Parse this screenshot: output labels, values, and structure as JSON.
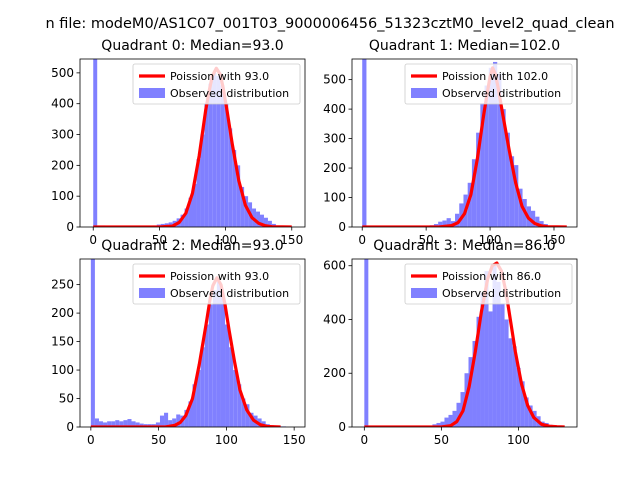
{
  "figure": {
    "title": "n file: modeM0/AS1C07_001T03_9000006456_51323cztM0_level2_quad_clean"
  },
  "colors": {
    "observed": "#8080ff",
    "poisson": "#ff0000"
  },
  "chart_data": [
    {
      "type": "bar",
      "title": "Quadrant 0: Median=93.0",
      "xlim": [
        -10,
        160
      ],
      "ylim": [
        0,
        545
      ],
      "xticks": [
        0,
        50,
        100,
        150
      ],
      "yticks": [
        0,
        100,
        200,
        300,
        400,
        500
      ],
      "legend": {
        "placement": "top-right",
        "poisson_label": "Poission with 93.0",
        "observed_label": "Observed distribution"
      },
      "bin_width": 3,
      "bins": [
        {
          "x": 0,
          "y": 545
        },
        {
          "x": 3,
          "y": 5
        },
        {
          "x": 6,
          "y": 5
        },
        {
          "x": 9,
          "y": 4
        },
        {
          "x": 12,
          "y": 4
        },
        {
          "x": 15,
          "y": 3
        },
        {
          "x": 18,
          "y": 3
        },
        {
          "x": 21,
          "y": 3
        },
        {
          "x": 24,
          "y": 3
        },
        {
          "x": 27,
          "y": 3
        },
        {
          "x": 30,
          "y": 3
        },
        {
          "x": 33,
          "y": 3
        },
        {
          "x": 36,
          "y": 3
        },
        {
          "x": 39,
          "y": 3
        },
        {
          "x": 42,
          "y": 4
        },
        {
          "x": 45,
          "y": 5
        },
        {
          "x": 48,
          "y": 8
        },
        {
          "x": 51,
          "y": 10
        },
        {
          "x": 54,
          "y": 12
        },
        {
          "x": 57,
          "y": 15
        },
        {
          "x": 60,
          "y": 20
        },
        {
          "x": 63,
          "y": 28
        },
        {
          "x": 66,
          "y": 40
        },
        {
          "x": 69,
          "y": 60
        },
        {
          "x": 72,
          "y": 95
        },
        {
          "x": 75,
          "y": 140
        },
        {
          "x": 78,
          "y": 220
        },
        {
          "x": 81,
          "y": 300
        },
        {
          "x": 84,
          "y": 400
        },
        {
          "x": 87,
          "y": 465
        },
        {
          "x": 90,
          "y": 500
        },
        {
          "x": 93,
          "y": 490
        },
        {
          "x": 96,
          "y": 460
        },
        {
          "x": 99,
          "y": 400
        },
        {
          "x": 102,
          "y": 320
        },
        {
          "x": 105,
          "y": 250
        },
        {
          "x": 108,
          "y": 200
        },
        {
          "x": 111,
          "y": 130
        },
        {
          "x": 114,
          "y": 100
        },
        {
          "x": 117,
          "y": 80
        },
        {
          "x": 120,
          "y": 60
        },
        {
          "x": 123,
          "y": 50
        },
        {
          "x": 126,
          "y": 40
        },
        {
          "x": 129,
          "y": 30
        },
        {
          "x": 132,
          "y": 20
        },
        {
          "x": 135,
          "y": 10
        },
        {
          "x": 138,
          "y": 5
        },
        {
          "x": 141,
          "y": 3
        },
        {
          "x": 144,
          "y": 2
        },
        {
          "x": 147,
          "y": 1
        }
      ],
      "poisson": {
        "x": [
          0,
          50,
          60,
          65,
          70,
          75,
          80,
          85,
          88,
          90,
          93,
          96,
          98,
          101,
          105,
          110,
          115,
          120,
          125,
          130,
          135,
          150
        ],
        "y": [
          0,
          0,
          3,
          15,
          45,
          110,
          230,
          380,
          450,
          490,
          515,
          495,
          455,
          380,
          270,
          150,
          70,
          30,
          12,
          4,
          1,
          0
        ]
      }
    },
    {
      "type": "bar",
      "title": "Quadrant 1: Median=102.0",
      "xlim": [
        -8,
        168
      ],
      "ylim": [
        0,
        570
      ],
      "xticks": [
        0,
        50,
        100,
        150
      ],
      "yticks": [
        0,
        100,
        200,
        300,
        400,
        500
      ],
      "legend": {
        "placement": "top-right",
        "poisson_label": "Poission with 102.0",
        "observed_label": "Observed distribution"
      },
      "bin_width": 3.3,
      "bins": [
        {
          "x": 0,
          "y": 570
        },
        {
          "x": 3.3,
          "y": 5
        },
        {
          "x": 6.6,
          "y": 4
        },
        {
          "x": 9.9,
          "y": 3
        },
        {
          "x": 13.2,
          "y": 3
        },
        {
          "x": 16.5,
          "y": 3
        },
        {
          "x": 19.8,
          "y": 3
        },
        {
          "x": 23.1,
          "y": 4
        },
        {
          "x": 26.4,
          "y": 4
        },
        {
          "x": 29.7,
          "y": 3
        },
        {
          "x": 33,
          "y": 3
        },
        {
          "x": 36.3,
          "y": 3
        },
        {
          "x": 39.6,
          "y": 3
        },
        {
          "x": 42.9,
          "y": 3
        },
        {
          "x": 46.2,
          "y": 3
        },
        {
          "x": 49.5,
          "y": 4
        },
        {
          "x": 52.8,
          "y": 6
        },
        {
          "x": 56.1,
          "y": 10
        },
        {
          "x": 59.4,
          "y": 18
        },
        {
          "x": 62.7,
          "y": 22
        },
        {
          "x": 66,
          "y": 30
        },
        {
          "x": 69.3,
          "y": 20
        },
        {
          "x": 72.6,
          "y": 45
        },
        {
          "x": 75.9,
          "y": 80
        },
        {
          "x": 79.2,
          "y": 110
        },
        {
          "x": 82.5,
          "y": 150
        },
        {
          "x": 85.8,
          "y": 230
        },
        {
          "x": 89.1,
          "y": 320
        },
        {
          "x": 92.4,
          "y": 420
        },
        {
          "x": 95.7,
          "y": 480
        },
        {
          "x": 99,
          "y": 540
        },
        {
          "x": 102.3,
          "y": 560
        },
        {
          "x": 105.6,
          "y": 520
        },
        {
          "x": 108.9,
          "y": 400
        },
        {
          "x": 112.2,
          "y": 320
        },
        {
          "x": 115.5,
          "y": 240
        },
        {
          "x": 118.8,
          "y": 210
        },
        {
          "x": 122.1,
          "y": 130
        },
        {
          "x": 125.4,
          "y": 95
        },
        {
          "x": 128.7,
          "y": 70
        },
        {
          "x": 132,
          "y": 55
        },
        {
          "x": 135.3,
          "y": 35
        },
        {
          "x": 138.6,
          "y": 20
        },
        {
          "x": 141.9,
          "y": 10
        },
        {
          "x": 145.2,
          "y": 5
        },
        {
          "x": 148.5,
          "y": 4
        },
        {
          "x": 151.8,
          "y": 3
        },
        {
          "x": 155.1,
          "y": 2
        }
      ],
      "poisson": {
        "x": [
          0,
          60,
          70,
          75,
          80,
          85,
          90,
          95,
          98,
          100,
          102,
          104,
          106,
          110,
          115,
          120,
          125,
          130,
          135,
          140,
          145,
          160
        ],
        "y": [
          0,
          0,
          5,
          15,
          45,
          110,
          230,
          380,
          460,
          510,
          540,
          520,
          480,
          380,
          260,
          150,
          70,
          30,
          12,
          4,
          1,
          0
        ]
      }
    },
    {
      "type": "bar",
      "title": "Quadrant 2: Median=93.0",
      "xlim": [
        -8,
        158
      ],
      "ylim": [
        0,
        295
      ],
      "xticks": [
        0,
        50,
        100,
        150
      ],
      "yticks": [
        0,
        50,
        100,
        150,
        200,
        250
      ],
      "legend": {
        "placement": "top-right",
        "poisson_label": "Poission with 93.0",
        "observed_label": "Observed distribution"
      },
      "bin_width": 3,
      "bins": [
        {
          "x": 0,
          "y": 295
        },
        {
          "x": 3,
          "y": 15
        },
        {
          "x": 6,
          "y": 10
        },
        {
          "x": 9,
          "y": 8
        },
        {
          "x": 12,
          "y": 10
        },
        {
          "x": 15,
          "y": 10
        },
        {
          "x": 18,
          "y": 12
        },
        {
          "x": 21,
          "y": 10
        },
        {
          "x": 24,
          "y": 12
        },
        {
          "x": 27,
          "y": 14
        },
        {
          "x": 30,
          "y": 10
        },
        {
          "x": 33,
          "y": 8
        },
        {
          "x": 36,
          "y": 6
        },
        {
          "x": 39,
          "y": 5
        },
        {
          "x": 42,
          "y": 5
        },
        {
          "x": 45,
          "y": 5
        },
        {
          "x": 48,
          "y": 8
        },
        {
          "x": 51,
          "y": 20
        },
        {
          "x": 54,
          "y": 25
        },
        {
          "x": 57,
          "y": 12
        },
        {
          "x": 60,
          "y": 15
        },
        {
          "x": 63,
          "y": 22
        },
        {
          "x": 66,
          "y": 20
        },
        {
          "x": 69,
          "y": 30
        },
        {
          "x": 72,
          "y": 45
        },
        {
          "x": 75,
          "y": 75
        },
        {
          "x": 78,
          "y": 100
        },
        {
          "x": 81,
          "y": 140
        },
        {
          "x": 84,
          "y": 180
        },
        {
          "x": 87,
          "y": 215
        },
        {
          "x": 90,
          "y": 240
        },
        {
          "x": 93,
          "y": 255
        },
        {
          "x": 96,
          "y": 230
        },
        {
          "x": 99,
          "y": 180
        },
        {
          "x": 102,
          "y": 140
        },
        {
          "x": 105,
          "y": 100
        },
        {
          "x": 108,
          "y": 75
        },
        {
          "x": 111,
          "y": 50
        },
        {
          "x": 114,
          "y": 40
        },
        {
          "x": 117,
          "y": 25
        },
        {
          "x": 120,
          "y": 20
        },
        {
          "x": 123,
          "y": 15
        },
        {
          "x": 126,
          "y": 10
        },
        {
          "x": 129,
          "y": 5
        },
        {
          "x": 132,
          "y": 3
        },
        {
          "x": 135,
          "y": 2
        },
        {
          "x": 138,
          "y": 1
        },
        {
          "x": 141,
          "y": 1
        }
      ],
      "poisson": {
        "x": [
          0,
          55,
          62,
          66,
          70,
          75,
          80,
          85,
          88,
          90,
          93,
          96,
          99,
          102,
          106,
          110,
          115,
          120,
          125,
          130,
          140
        ],
        "y": [
          0,
          0,
          3,
          8,
          20,
          50,
          110,
          180,
          225,
          248,
          262,
          250,
          215,
          170,
          115,
          65,
          30,
          12,
          4,
          1,
          0
        ]
      }
    },
    {
      "type": "bar",
      "title": "Quadrant 3: Median=86.0",
      "xlim": [
        -8,
        138
      ],
      "ylim": [
        0,
        625
      ],
      "xticks": [
        0,
        50,
        100
      ],
      "yticks": [
        0,
        200,
        400,
        600
      ],
      "legend": {
        "placement": "top-right",
        "poisson_label": "Poission with 86.0",
        "observed_label": "Observed distribution"
      },
      "bin_width": 2.6,
      "bins": [
        {
          "x": 0,
          "y": 625
        },
        {
          "x": 2.6,
          "y": 5
        },
        {
          "x": 5.2,
          "y": 4
        },
        {
          "x": 7.8,
          "y": 3
        },
        {
          "x": 10.4,
          "y": 5
        },
        {
          "x": 13,
          "y": 3
        },
        {
          "x": 15.6,
          "y": 3
        },
        {
          "x": 18.2,
          "y": 3
        },
        {
          "x": 20.8,
          "y": 3
        },
        {
          "x": 23.4,
          "y": 3
        },
        {
          "x": 26,
          "y": 3
        },
        {
          "x": 28.6,
          "y": 3
        },
        {
          "x": 31.2,
          "y": 3
        },
        {
          "x": 33.8,
          "y": 3
        },
        {
          "x": 36.4,
          "y": 3
        },
        {
          "x": 39,
          "y": 3
        },
        {
          "x": 41.6,
          "y": 5
        },
        {
          "x": 44.2,
          "y": 10
        },
        {
          "x": 46.8,
          "y": 15
        },
        {
          "x": 49.4,
          "y": 20
        },
        {
          "x": 52,
          "y": 35
        },
        {
          "x": 54.6,
          "y": 45
        },
        {
          "x": 57.2,
          "y": 60
        },
        {
          "x": 59.8,
          "y": 90
        },
        {
          "x": 62.4,
          "y": 130
        },
        {
          "x": 65,
          "y": 200
        },
        {
          "x": 67.6,
          "y": 260
        },
        {
          "x": 70.2,
          "y": 320
        },
        {
          "x": 72.8,
          "y": 410
        },
        {
          "x": 75.4,
          "y": 500
        },
        {
          "x": 78,
          "y": 580
        },
        {
          "x": 80.6,
          "y": 430
        },
        {
          "x": 83.2,
          "y": 600
        },
        {
          "x": 85.8,
          "y": 540
        },
        {
          "x": 88.4,
          "y": 460
        },
        {
          "x": 91,
          "y": 400
        },
        {
          "x": 93.6,
          "y": 330
        },
        {
          "x": 96.2,
          "y": 300
        },
        {
          "x": 98.8,
          "y": 220
        },
        {
          "x": 101.4,
          "y": 170
        },
        {
          "x": 104,
          "y": 110
        },
        {
          "x": 106.6,
          "y": 80
        },
        {
          "x": 109.2,
          "y": 60
        },
        {
          "x": 111.8,
          "y": 40
        },
        {
          "x": 114.4,
          "y": 20
        },
        {
          "x": 117,
          "y": 15
        },
        {
          "x": 119.6,
          "y": 8
        },
        {
          "x": 122.2,
          "y": 3
        }
      ],
      "poisson": {
        "x": [
          0,
          50,
          56,
          60,
          64,
          68,
          72,
          76,
          80,
          83,
          86,
          89,
          92,
          95,
          98,
          102,
          106,
          110,
          115,
          120,
          125,
          130
        ],
        "y": [
          0,
          0,
          5,
          20,
          60,
          150,
          280,
          430,
          550,
          600,
          610,
          580,
          500,
          390,
          280,
          160,
          80,
          35,
          10,
          3,
          1,
          0
        ]
      }
    }
  ]
}
